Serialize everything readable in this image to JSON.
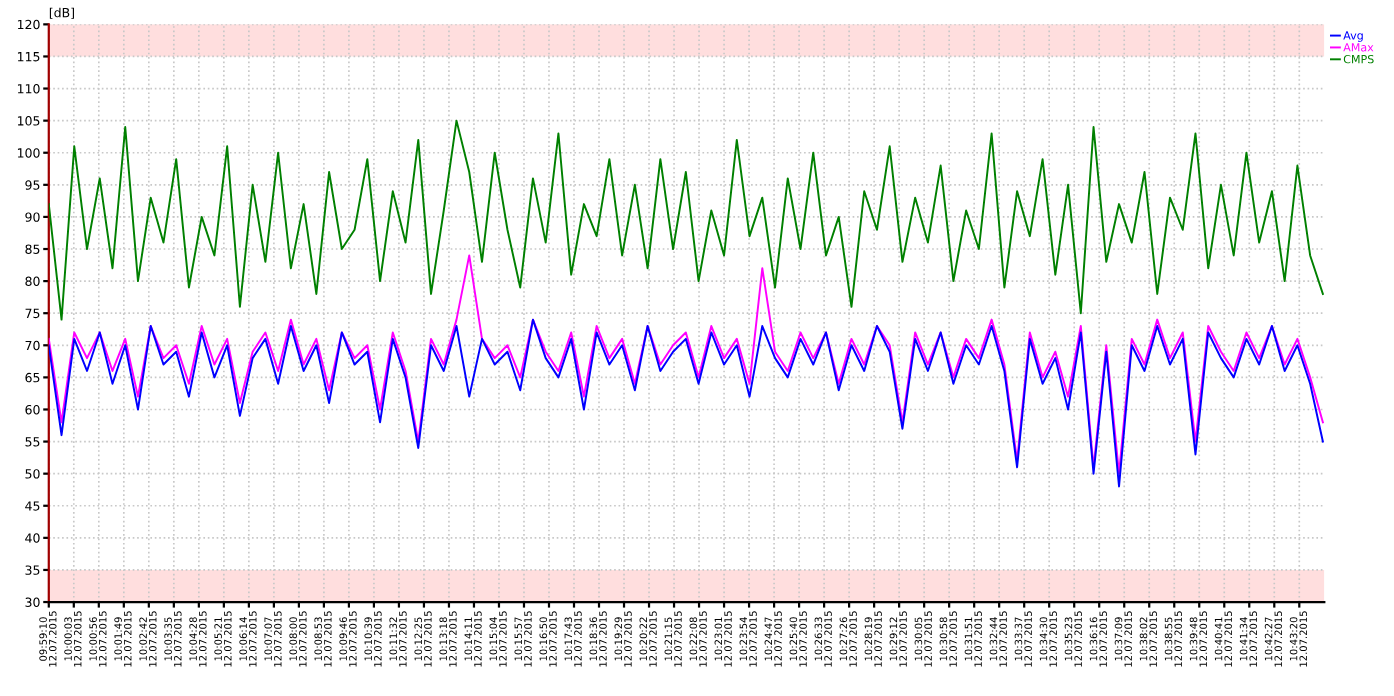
{
  "chart_data": {
    "type": "line",
    "ylabel": "[dB]",
    "x": [
      "2015-07-12T09:59:10",
      "2015-07-12T09:59:37",
      "2015-07-12T10:00:04",
      "2015-07-12T10:00:31",
      "2015-07-12T10:00:58",
      "2015-07-12T10:01:25",
      "2015-07-12T10:01:52",
      "2015-07-12T10:02:19",
      "2015-07-12T10:02:46",
      "2015-07-12T10:03:13",
      "2015-07-12T10:03:40",
      "2015-07-12T10:04:07",
      "2015-07-12T10:04:34",
      "2015-07-12T10:05:01",
      "2015-07-12T10:05:28",
      "2015-07-12T10:05:55",
      "2015-07-12T10:06:22",
      "2015-07-12T10:06:49",
      "2015-07-12T10:07:16",
      "2015-07-12T10:07:43",
      "2015-07-12T10:08:10",
      "2015-07-12T10:08:37",
      "2015-07-12T10:09:04",
      "2015-07-12T10:09:31",
      "2015-07-12T10:09:58",
      "2015-07-12T10:10:25",
      "2015-07-12T10:10:52",
      "2015-07-12T10:11:19",
      "2015-07-12T10:11:46",
      "2015-07-12T10:12:13",
      "2015-07-12T10:12:40",
      "2015-07-12T10:13:07",
      "2015-07-12T10:13:34",
      "2015-07-12T10:14:01",
      "2015-07-12T10:14:28",
      "2015-07-12T10:14:55",
      "2015-07-12T10:15:22",
      "2015-07-12T10:15:49",
      "2015-07-12T10:16:16",
      "2015-07-12T10:16:43",
      "2015-07-12T10:17:10",
      "2015-07-12T10:17:37",
      "2015-07-12T10:18:04",
      "2015-07-12T10:18:31",
      "2015-07-12T10:18:58",
      "2015-07-12T10:19:25",
      "2015-07-12T10:19:52",
      "2015-07-12T10:20:19",
      "2015-07-12T10:20:46",
      "2015-07-12T10:21:13",
      "2015-07-12T10:21:40",
      "2015-07-12T10:22:07",
      "2015-07-12T10:22:34",
      "2015-07-12T10:23:01",
      "2015-07-12T10:23:28",
      "2015-07-12T10:23:55",
      "2015-07-12T10:24:22",
      "2015-07-12T10:24:49",
      "2015-07-12T10:25:16",
      "2015-07-12T10:25:43",
      "2015-07-12T10:26:10",
      "2015-07-12T10:26:37",
      "2015-07-12T10:27:04",
      "2015-07-12T10:27:31",
      "2015-07-12T10:27:58",
      "2015-07-12T10:28:25",
      "2015-07-12T10:28:52",
      "2015-07-12T10:29:19",
      "2015-07-12T10:29:46",
      "2015-07-12T10:30:13",
      "2015-07-12T10:30:40",
      "2015-07-12T10:31:07",
      "2015-07-12T10:31:34",
      "2015-07-12T10:32:01",
      "2015-07-12T10:32:28",
      "2015-07-12T10:32:55",
      "2015-07-12T10:33:22",
      "2015-07-12T10:33:49",
      "2015-07-12T10:34:16",
      "2015-07-12T10:34:43",
      "2015-07-12T10:35:10",
      "2015-07-12T10:35:37",
      "2015-07-12T10:36:04",
      "2015-07-12T10:36:31",
      "2015-07-12T10:36:58",
      "2015-07-12T10:37:25",
      "2015-07-12T10:37:52",
      "2015-07-12T10:38:19",
      "2015-07-12T10:38:46",
      "2015-07-12T10:39:13",
      "2015-07-12T10:39:40",
      "2015-07-12T10:40:07",
      "2015-07-12T10:40:34",
      "2015-07-12T10:41:01",
      "2015-07-12T10:41:28",
      "2015-07-12T10:41:55",
      "2015-07-12T10:42:22",
      "2015-07-12T10:42:49",
      "2015-07-12T10:43:16",
      "2015-07-12T10:43:43",
      "2015-07-12T10:44:10"
    ],
    "series": [
      {
        "name": "Avg",
        "color": "#0000ff",
        "values": [
          70,
          56,
          71,
          66,
          72,
          64,
          70,
          60,
          73,
          67,
          69,
          62,
          72,
          65,
          70,
          59,
          68,
          71,
          64,
          73,
          66,
          70,
          61,
          72,
          67,
          69,
          58,
          71,
          65,
          54,
          70,
          66,
          73,
          62,
          71,
          67,
          69,
          63,
          74,
          68,
          65,
          71,
          60,
          72,
          67,
          70,
          63,
          73,
          66,
          69,
          71,
          64,
          72,
          67,
          70,
          62,
          73,
          68,
          65,
          71,
          67,
          72,
          63,
          70,
          66,
          73,
          69,
          57,
          71,
          66,
          72,
          64,
          70,
          67,
          73,
          66,
          51,
          71,
          64,
          68,
          60,
          72,
          50,
          69,
          48,
          70,
          66,
          73,
          67,
          71,
          53,
          72,
          68,
          65,
          71,
          67,
          73,
          66,
          70,
          64,
          55
        ]
      },
      {
        "name": "AMax",
        "color": "#ff00ff",
        "values": [
          71,
          58,
          72,
          68,
          72,
          66,
          71,
          62,
          73,
          68,
          70,
          64,
          73,
          67,
          71,
          61,
          69,
          72,
          66,
          74,
          67,
          71,
          63,
          72,
          68,
          70,
          60,
          72,
          66,
          55,
          71,
          67,
          74,
          84,
          71,
          68,
          70,
          65,
          74,
          69,
          66,
          72,
          62,
          73,
          68,
          71,
          64,
          73,
          67,
          70,
          72,
          65,
          73,
          68,
          71,
          64,
          82,
          69,
          66,
          72,
          68,
          72,
          64,
          71,
          67,
          73,
          70,
          58,
          72,
          67,
          72,
          65,
          71,
          68,
          74,
          67,
          52,
          72,
          65,
          69,
          62,
          73,
          51,
          70,
          50,
          71,
          67,
          74,
          68,
          72,
          55,
          73,
          69,
          66,
          72,
          68,
          73,
          67,
          71,
          65,
          58
        ]
      },
      {
        "name": "CMPS",
        "color": "#008000",
        "values": [
          92,
          74,
          101,
          85,
          96,
          82,
          104,
          80,
          93,
          86,
          99,
          79,
          90,
          84,
          101,
          76,
          95,
          83,
          100,
          82,
          92,
          78,
          97,
          85,
          88,
          99,
          80,
          94,
          86,
          102,
          78,
          91,
          105,
          97,
          83,
          100,
          88,
          79,
          96,
          86,
          103,
          81,
          92,
          87,
          99,
          84,
          95,
          82,
          99,
          85,
          97,
          80,
          91,
          84,
          102,
          87,
          93,
          79,
          96,
          85,
          100,
          84,
          90,
          76,
          94,
          88,
          101,
          83,
          93,
          86,
          98,
          80,
          91,
          85,
          103,
          79,
          94,
          87,
          99,
          81,
          95,
          75,
          104,
          83,
          92,
          86,
          97,
          78,
          93,
          88,
          103,
          82,
          95,
          84,
          100,
          86,
          94,
          80,
          98,
          84,
          78
        ]
      }
    ],
    "xlim": [
      "2015-07-12T09:59:10",
      "2015-07-12T10:44:13"
    ],
    "xticks": [
      {
        "value": "2015-07-12T09:59:10",
        "label": "09:59:10\n12.07.2015"
      },
      {
        "value": "2015-07-12T10:00:03",
        "label": "10:00:03\n12.07.2015"
      },
      {
        "value": "2015-07-12T10:00:56",
        "label": "10:00:56\n12.07.2015"
      },
      {
        "value": "2015-07-12T10:01:49",
        "label": "10:01:49\n12.07.2015"
      },
      {
        "value": "2015-07-12T10:02:42",
        "label": "10:02:42\n12.07.2015"
      },
      {
        "value": "2015-07-12T10:03:35",
        "label": "10:03:35\n12.07.2015"
      },
      {
        "value": "2015-07-12T10:04:28",
        "label": "10:04:28\n12.07.2015"
      },
      {
        "value": "2015-07-12T10:05:21",
        "label": "10:05:21\n12.07.2015"
      },
      {
        "value": "2015-07-12T10:06:14",
        "label": "10:06:14\n12.07.2015"
      },
      {
        "value": "2015-07-12T10:07:07",
        "label": "10:07:07\n12.07.2015"
      },
      {
        "value": "2015-07-12T10:08:00",
        "label": "10:08:00\n12.07.2015"
      },
      {
        "value": "2015-07-12T10:08:53",
        "label": "10:08:53\n12.07.2015"
      },
      {
        "value": "2015-07-12T10:09:46",
        "label": "10:09:46\n12.07.2015"
      },
      {
        "value": "2015-07-12T10:10:39",
        "label": "10:10:39\n12.07.2015"
      },
      {
        "value": "2015-07-12T10:11:32",
        "label": "10:11:32\n12.07.2015"
      },
      {
        "value": "2015-07-12T10:12:25",
        "label": "10:12:25\n12.07.2015"
      },
      {
        "value": "2015-07-12T10:13:18",
        "label": "10:13:18\n12.07.2015"
      },
      {
        "value": "2015-07-12T10:14:11",
        "label": "10:14:11\n12.07.2015"
      },
      {
        "value": "2015-07-12T10:15:04",
        "label": "10:15:04\n12.07.2015"
      },
      {
        "value": "2015-07-12T10:15:57",
        "label": "10:15:57\n12.07.2015"
      },
      {
        "value": "2015-07-12T10:16:50",
        "label": "10:16:50\n12.07.2015"
      },
      {
        "value": "2015-07-12T10:17:43",
        "label": "10:17:43\n12.07.2015"
      },
      {
        "value": "2015-07-12T10:18:36",
        "label": "10:18:36\n12.07.2015"
      },
      {
        "value": "2015-07-12T10:19:29",
        "label": "10:19:29\n12.07.2015"
      },
      {
        "value": "2015-07-12T10:20:22",
        "label": "10:20:22\n12.07.2015"
      },
      {
        "value": "2015-07-12T10:21:15",
        "label": "10:21:15\n12.07.2015"
      },
      {
        "value": "2015-07-12T10:22:08",
        "label": "10:22:08\n12.07.2015"
      },
      {
        "value": "2015-07-12T10:23:01",
        "label": "10:23:01\n12.07.2015"
      },
      {
        "value": "2015-07-12T10:23:54",
        "label": "10:23:54\n12.07.2015"
      },
      {
        "value": "2015-07-12T10:24:47",
        "label": "10:24:47\n12.07.2015"
      },
      {
        "value": "2015-07-12T10:25:40",
        "label": "10:25:40\n12.07.2015"
      },
      {
        "value": "2015-07-12T10:26:33",
        "label": "10:26:33\n12.07.2015"
      },
      {
        "value": "2015-07-12T10:27:26",
        "label": "10:27:26\n12.07.2015"
      },
      {
        "value": "2015-07-12T10:28:19",
        "label": "10:28:19\n12.07.2015"
      },
      {
        "value": "2015-07-12T10:29:12",
        "label": "10:29:12\n12.07.2015"
      },
      {
        "value": "2015-07-12T10:30:05",
        "label": "10:30:05\n12.07.2015"
      },
      {
        "value": "2015-07-12T10:30:58",
        "label": "10:30:58\n12.07.2015"
      },
      {
        "value": "2015-07-12T10:31:51",
        "label": "10:31:51\n12.07.2015"
      },
      {
        "value": "2015-07-12T10:32:44",
        "label": "10:32:44\n12.07.2015"
      },
      {
        "value": "2015-07-12T10:33:37",
        "label": "10:33:37\n12.07.2015"
      },
      {
        "value": "2015-07-12T10:34:30",
        "label": "10:34:30\n12.07.2015"
      },
      {
        "value": "2015-07-12T10:35:23",
        "label": "10:35:23\n12.07.2015"
      },
      {
        "value": "2015-07-12T10:36:16",
        "label": "10:36:16\n12.07.2015"
      },
      {
        "value": "2015-07-12T10:37:09",
        "label": "10:37:09\n12.07.2015"
      },
      {
        "value": "2015-07-12T10:38:02",
        "label": "10:38:02\n12.07.2015"
      },
      {
        "value": "2015-07-12T10:38:55",
        "label": "10:38:55\n12.07.2015"
      },
      {
        "value": "2015-07-12T10:39:48",
        "label": "10:39:48\n12.07.2015"
      },
      {
        "value": "2015-07-12T10:40:41",
        "label": "10:40:41\n12.07.2015"
      },
      {
        "value": "2015-07-12T10:41:34",
        "label": "10:41:34\n12.07.2015"
      },
      {
        "value": "2015-07-12T10:42:27",
        "label": "10:42:27\n12.07.2015"
      },
      {
        "value": "2015-07-12T10:43:20",
        "label": "10:43:20\n12.07.2015"
      }
    ],
    "ylim": [
      30,
      120
    ],
    "yticks": [
      30,
      35,
      40,
      45,
      50,
      55,
      60,
      65,
      70,
      75,
      80,
      85,
      90,
      95,
      100,
      105,
      110,
      115,
      120
    ],
    "bands": [
      {
        "axis": "y",
        "from": 115,
        "to": 120,
        "color": "#ffdede"
      },
      {
        "axis": "y",
        "from": 30,
        "to": 35,
        "color": "#ffdede"
      }
    ],
    "grid": true,
    "legend": "top right",
    "marker": "none",
    "line_style": "solid"
  }
}
